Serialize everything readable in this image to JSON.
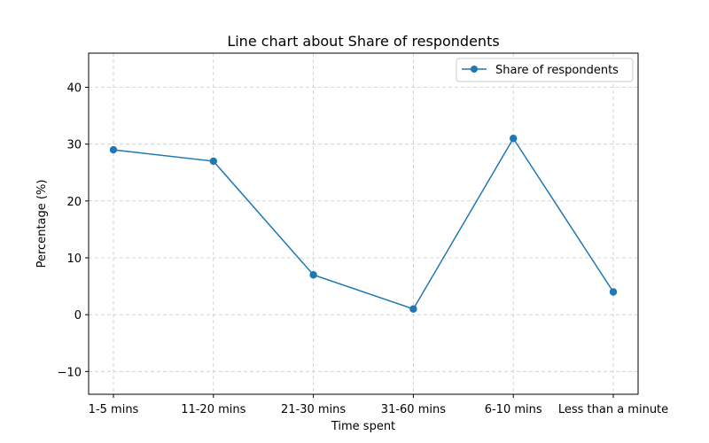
{
  "chart_data": {
    "type": "line",
    "title": "Line chart about Share of respondents",
    "xlabel": "Time spent",
    "ylabel": "Percentage (%)",
    "categories": [
      "1-5 mins",
      "11-20 mins",
      "21-30 mins",
      "31-60 mins",
      "6-10 mins",
      "Less than a minute"
    ],
    "series": [
      {
        "name": "Share of respondents",
        "values": [
          29,
          27,
          7,
          1,
          31,
          4
        ],
        "color": "#1f77b4"
      }
    ],
    "ylim": [
      -14,
      46
    ],
    "yticks": [
      -10,
      0,
      10,
      20,
      30,
      40
    ],
    "ytick_labels": [
      "−10",
      "0",
      "10",
      "20",
      "30",
      "40"
    ],
    "grid": true,
    "legend_position": "top-right"
  }
}
